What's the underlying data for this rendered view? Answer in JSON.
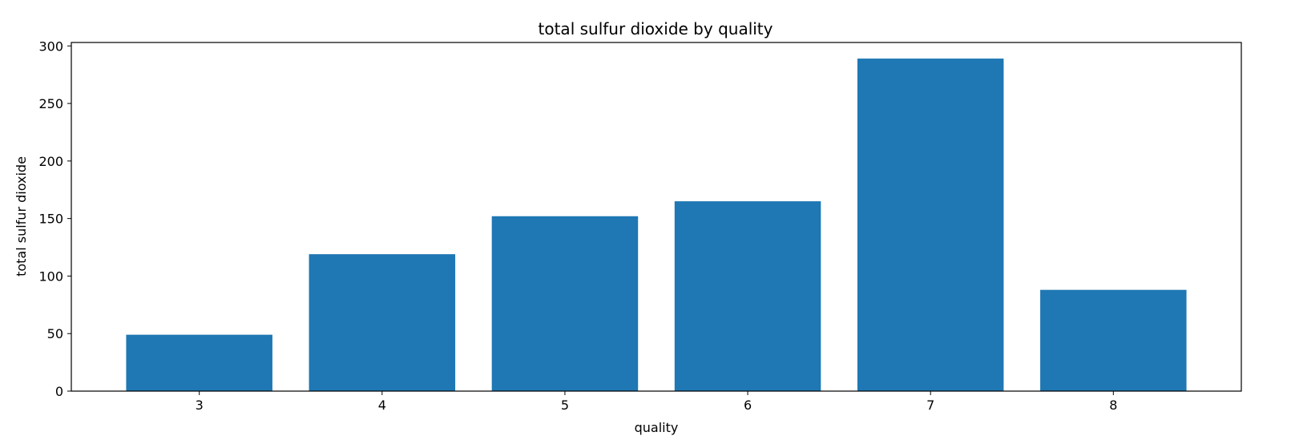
{
  "chart_data": {
    "type": "bar",
    "title": "total sulfur dioxide by quality",
    "xlabel": "quality",
    "ylabel": "total sulfur dioxide",
    "categories": [
      "3",
      "4",
      "5",
      "6",
      "7",
      "8"
    ],
    "values": [
      49,
      119,
      152,
      165,
      289,
      88
    ],
    "ylim": [
      0,
      303
    ],
    "yticks": [
      0,
      50,
      100,
      150,
      200,
      250,
      300
    ],
    "grid": false,
    "legend": "none",
    "bar_color": "#1f77b4"
  }
}
